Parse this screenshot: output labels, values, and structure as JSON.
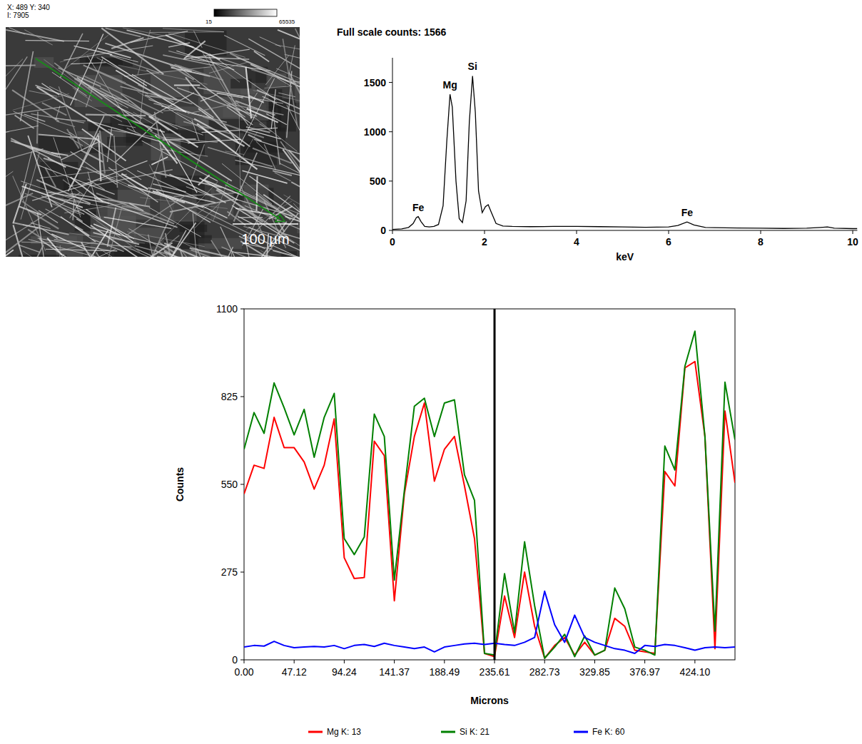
{
  "image": {
    "coords": "X: 489 Y: 340",
    "intensity": "I: 7905",
    "scale_min": 15,
    "scale_max": 65535,
    "scale_bar": "100 µm"
  },
  "chart_data": [
    {
      "type": "line",
      "title": "Full scale counts: 1566",
      "x_label": "keV",
      "color": "#000000",
      "x": [
        0,
        0.2,
        0.35,
        0.45,
        0.52,
        0.56,
        0.62,
        0.7,
        0.8,
        0.9,
        1.0,
        1.1,
        1.18,
        1.25,
        1.3,
        1.38,
        1.45,
        1.52,
        1.6,
        1.67,
        1.74,
        1.8,
        1.87,
        1.95,
        2.02,
        2.08,
        2.15,
        2.25,
        2.4,
        2.6,
        3.0,
        3.5,
        4.0,
        4.5,
        5.0,
        5.5,
        6.0,
        6.2,
        6.4,
        6.55,
        6.8,
        7.0,
        7.5,
        8.0,
        8.5,
        9.0,
        9.3,
        9.45,
        9.6,
        10.0,
        10.1
      ],
      "values": [
        10,
        15,
        30,
        70,
        130,
        140,
        90,
        40,
        35,
        40,
        60,
        250,
        900,
        1380,
        1250,
        500,
        120,
        80,
        300,
        1100,
        1566,
        1200,
        400,
        180,
        240,
        260,
        180,
        70,
        45,
        40,
        38,
        40,
        40,
        38,
        35,
        32,
        35,
        50,
        85,
        55,
        30,
        28,
        25,
        22,
        20,
        22,
        30,
        35,
        22,
        18,
        18
      ],
      "xlim": [
        0,
        10.1
      ],
      "xticks": [
        0,
        2,
        4,
        6,
        8,
        10
      ],
      "ylim": [
        0,
        1750
      ],
      "yticks": [
        0,
        500,
        1000,
        1500
      ],
      "grid": false,
      "annotations": [
        {
          "text": "Fe",
          "x": 0.56,
          "y": 140
        },
        {
          "text": "Mg",
          "x": 1.25,
          "y": 1380
        },
        {
          "text": "Si",
          "x": 1.74,
          "y": 1566
        },
        {
          "text": "Fe",
          "x": 6.4,
          "y": 85
        }
      ]
    },
    {
      "type": "line",
      "x_label": "Microns",
      "y_label": "Counts",
      "cursor": 235.61,
      "x": [
        0.0,
        9.42,
        18.85,
        28.27,
        37.7,
        47.12,
        56.55,
        65.97,
        75.4,
        84.82,
        94.24,
        103.67,
        113.09,
        122.52,
        131.94,
        141.37,
        150.79,
        160.21,
        169.64,
        179.06,
        188.49,
        197.91,
        207.34,
        216.76,
        226.19,
        235.61,
        245.03,
        254.46,
        263.88,
        273.31,
        282.73,
        292.16,
        301.58,
        311.01,
        320.43,
        329.85,
        339.28,
        348.7,
        358.13,
        367.55,
        376.98,
        386.4,
        395.82,
        405.25,
        414.67,
        424.1,
        433.52,
        442.95,
        452.37,
        461.79
      ],
      "series": [
        {
          "name": "Mg K: 13",
          "color": "#ff0000",
          "values": [
            520,
            610,
            600,
            760,
            665,
            665,
            620,
            535,
            610,
            755,
            320,
            255,
            258,
            685,
            640,
            185,
            520,
            700,
            805,
            560,
            660,
            700,
            545,
            380,
            20,
            10,
            200,
            70,
            275,
            105,
            5,
            45,
            70,
            15,
            55,
            15,
            30,
            130,
            105,
            30,
            25,
            20,
            590,
            545,
            915,
            935,
            700,
            35,
            780,
            555
          ]
        },
        {
          "name": "Si K: 21",
          "color": "#008000",
          "values": [
            660,
            775,
            710,
            868,
            790,
            705,
            785,
            635,
            760,
            835,
            380,
            330,
            385,
            770,
            700,
            250,
            530,
            795,
            820,
            700,
            805,
            815,
            580,
            500,
            20,
            15,
            270,
            85,
            370,
            170,
            5,
            40,
            80,
            10,
            75,
            15,
            30,
            225,
            160,
            40,
            30,
            15,
            670,
            595,
            920,
            1030,
            700,
            90,
            870,
            690
          ]
        },
        {
          "name": "Fe K: 60",
          "color": "#0000ff",
          "values": [
            40,
            45,
            43,
            58,
            45,
            38,
            40,
            42,
            40,
            45,
            35,
            45,
            48,
            42,
            52,
            45,
            40,
            35,
            40,
            25,
            40,
            45,
            50,
            52,
            48,
            52,
            48,
            45,
            55,
            70,
            215,
            110,
            55,
            140,
            70,
            55,
            45,
            35,
            30,
            20,
            45,
            42,
            48,
            45,
            38,
            30,
            38,
            40,
            38,
            40
          ]
        }
      ],
      "xlim": [
        0,
        461.79
      ],
      "xticks": [
        {
          "value": 0,
          "label": "0.00"
        },
        {
          "value": 47.12,
          "label": "47.12"
        },
        {
          "value": 94.24,
          "label": "94.24"
        },
        {
          "value": 141.37,
          "label": "141.37"
        },
        {
          "value": 188.49,
          "label": "188.49"
        },
        {
          "value": 235.61,
          "label": "235.61"
        },
        {
          "value": 282.73,
          "label": "282.73"
        },
        {
          "value": 329.85,
          "label": "329.85"
        },
        {
          "value": 376.97,
          "label": "376.97"
        },
        {
          "value": 424.1,
          "label": "424.10"
        }
      ],
      "ylim": [
        0,
        1100
      ],
      "yticks": [
        0,
        275,
        550,
        825,
        1100
      ],
      "grid": false,
      "legend": "bottom"
    }
  ]
}
